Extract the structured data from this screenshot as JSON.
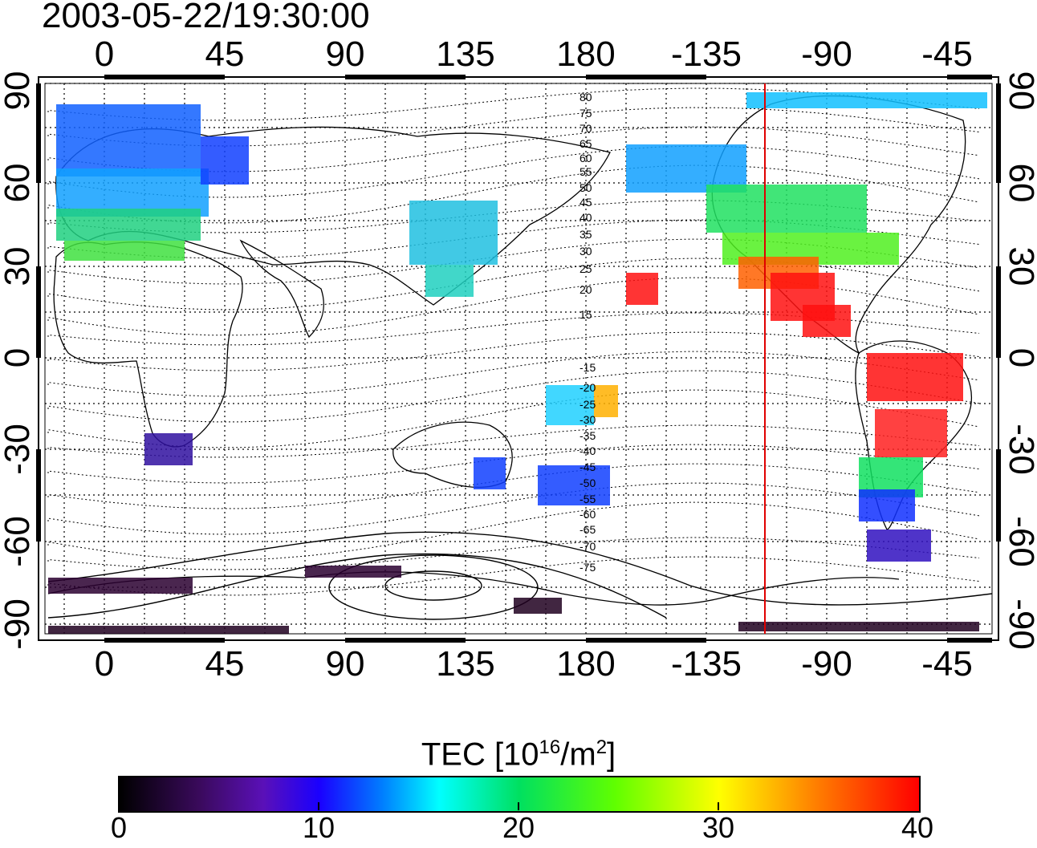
{
  "title": "2003-05-22/19:30:00",
  "axes": {
    "lon_ticks": [
      "0",
      "45",
      "90",
      "135",
      "180",
      "-135",
      "-90",
      "-45"
    ],
    "lat_ticks": [
      "90",
      "60",
      "30",
      "0",
      "-30",
      "-60",
      "-90"
    ]
  },
  "contour_labels": [
    "80",
    "75",
    "70",
    "65",
    "60",
    "55",
    "50",
    "45",
    "40",
    "35",
    "30",
    "25",
    "20",
    "15",
    "-15",
    "-20",
    "-25",
    "-30",
    "-35",
    "-40",
    "-45",
    "-50",
    "-55",
    "-60",
    "-65",
    "-70",
    "-75"
  ],
  "terminator": {
    "longitude": -113,
    "color": "#e00000"
  },
  "colorbar": {
    "title_prefix": "TEC  [10",
    "title_sup1": "16",
    "title_mid": "/m",
    "title_sup2": "2",
    "title_suffix": "]",
    "ticks": [
      "0",
      "10",
      "20",
      "30",
      "40"
    ],
    "range": [
      0,
      40
    ]
  },
  "colors": {
    "low": "#000000",
    "mid": "#00ffff",
    "high": "#ff0000"
  }
}
